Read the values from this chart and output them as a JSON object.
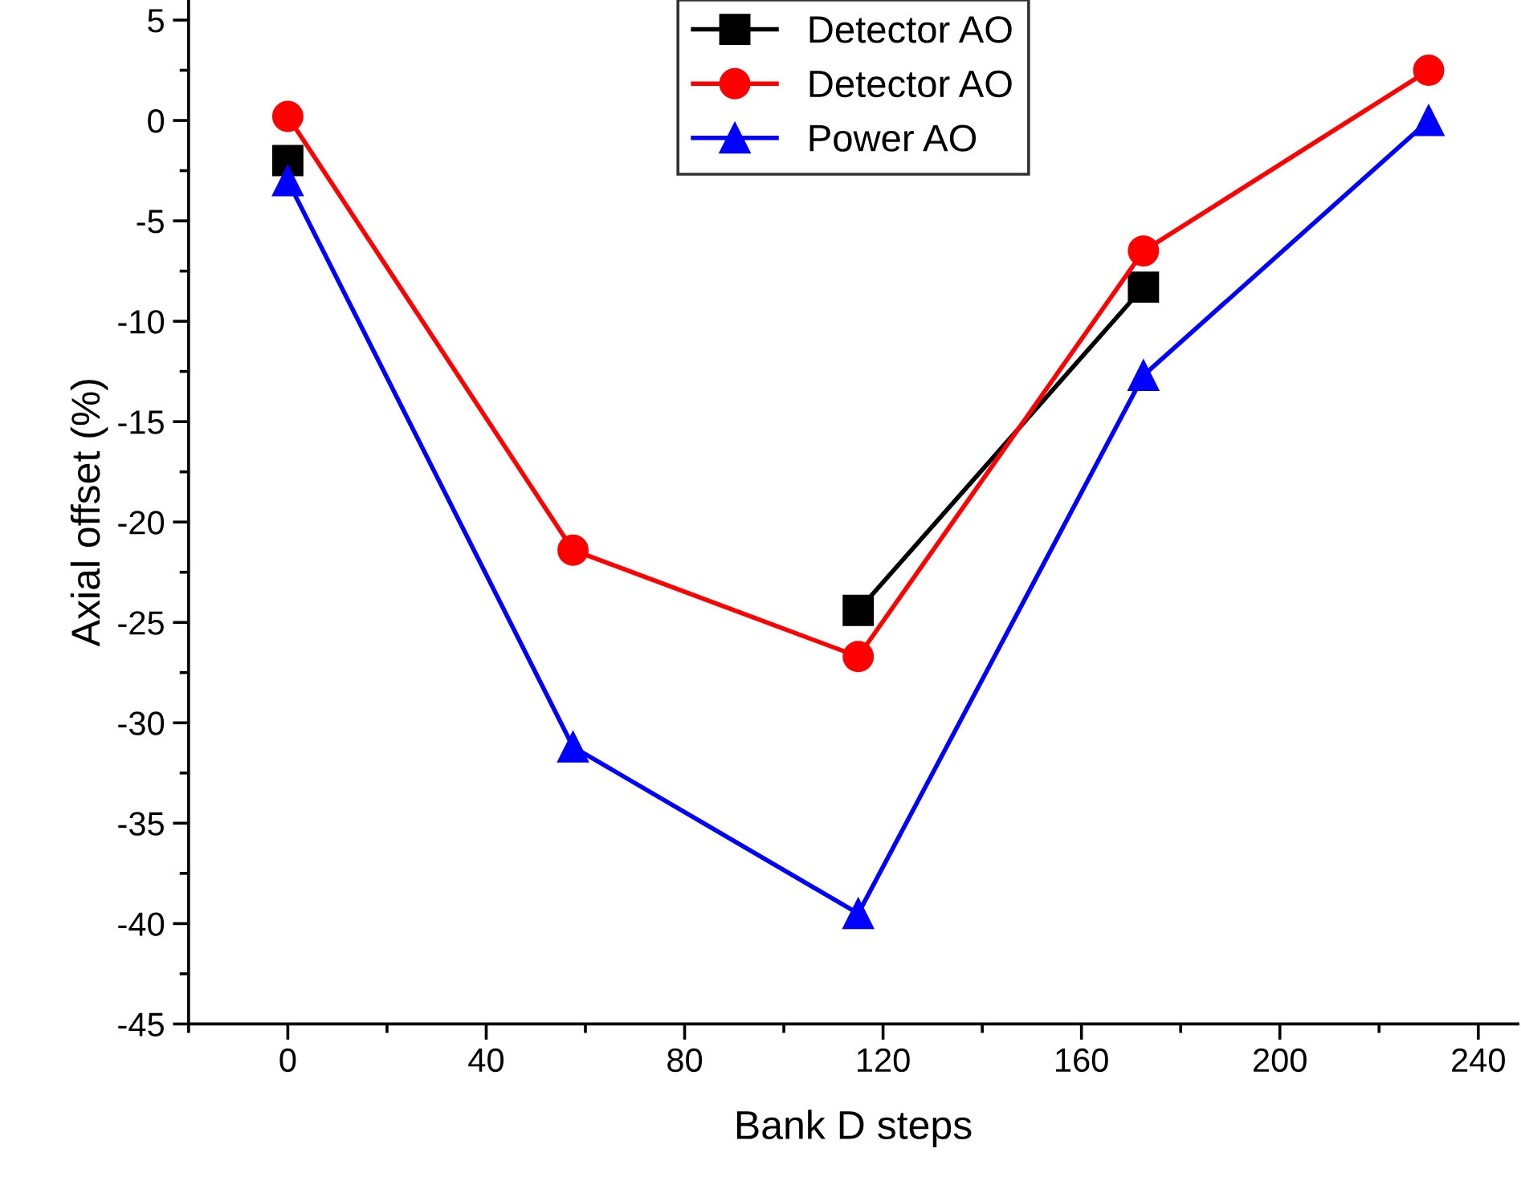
{
  "chart_data": {
    "type": "line",
    "xlabel": "Bank D steps",
    "ylabel": "Axial offset (%)",
    "x": [
      0,
      57.5,
      115,
      172.5,
      230
    ],
    "series": [
      {
        "name": "Detector AO",
        "color": "#000000",
        "marker": "square",
        "values": [
          -2.0,
          null,
          -24.4,
          -8.3,
          null
        ]
      },
      {
        "name": "Detector AO",
        "color": "#ff0000",
        "marker": "circle",
        "values": [
          0.2,
          -21.4,
          -26.7,
          -6.5,
          2.5
        ]
      },
      {
        "name": "Power AO",
        "color": "#0000ff",
        "marker": "triangle",
        "values": [
          -3.0,
          -31.2,
          -39.5,
          -12.7,
          0.0
        ]
      }
    ],
    "xlim": [
      -20,
      248
    ],
    "ylim": [
      -45,
      6
    ],
    "xticks": [
      0,
      40,
      80,
      120,
      160,
      200,
      240
    ],
    "yticks": [
      -45,
      -40,
      -35,
      -30,
      -25,
      -20,
      -15,
      -10,
      -5,
      0,
      5
    ],
    "grid": false,
    "legend": "top",
    "line_style": "solid"
  }
}
